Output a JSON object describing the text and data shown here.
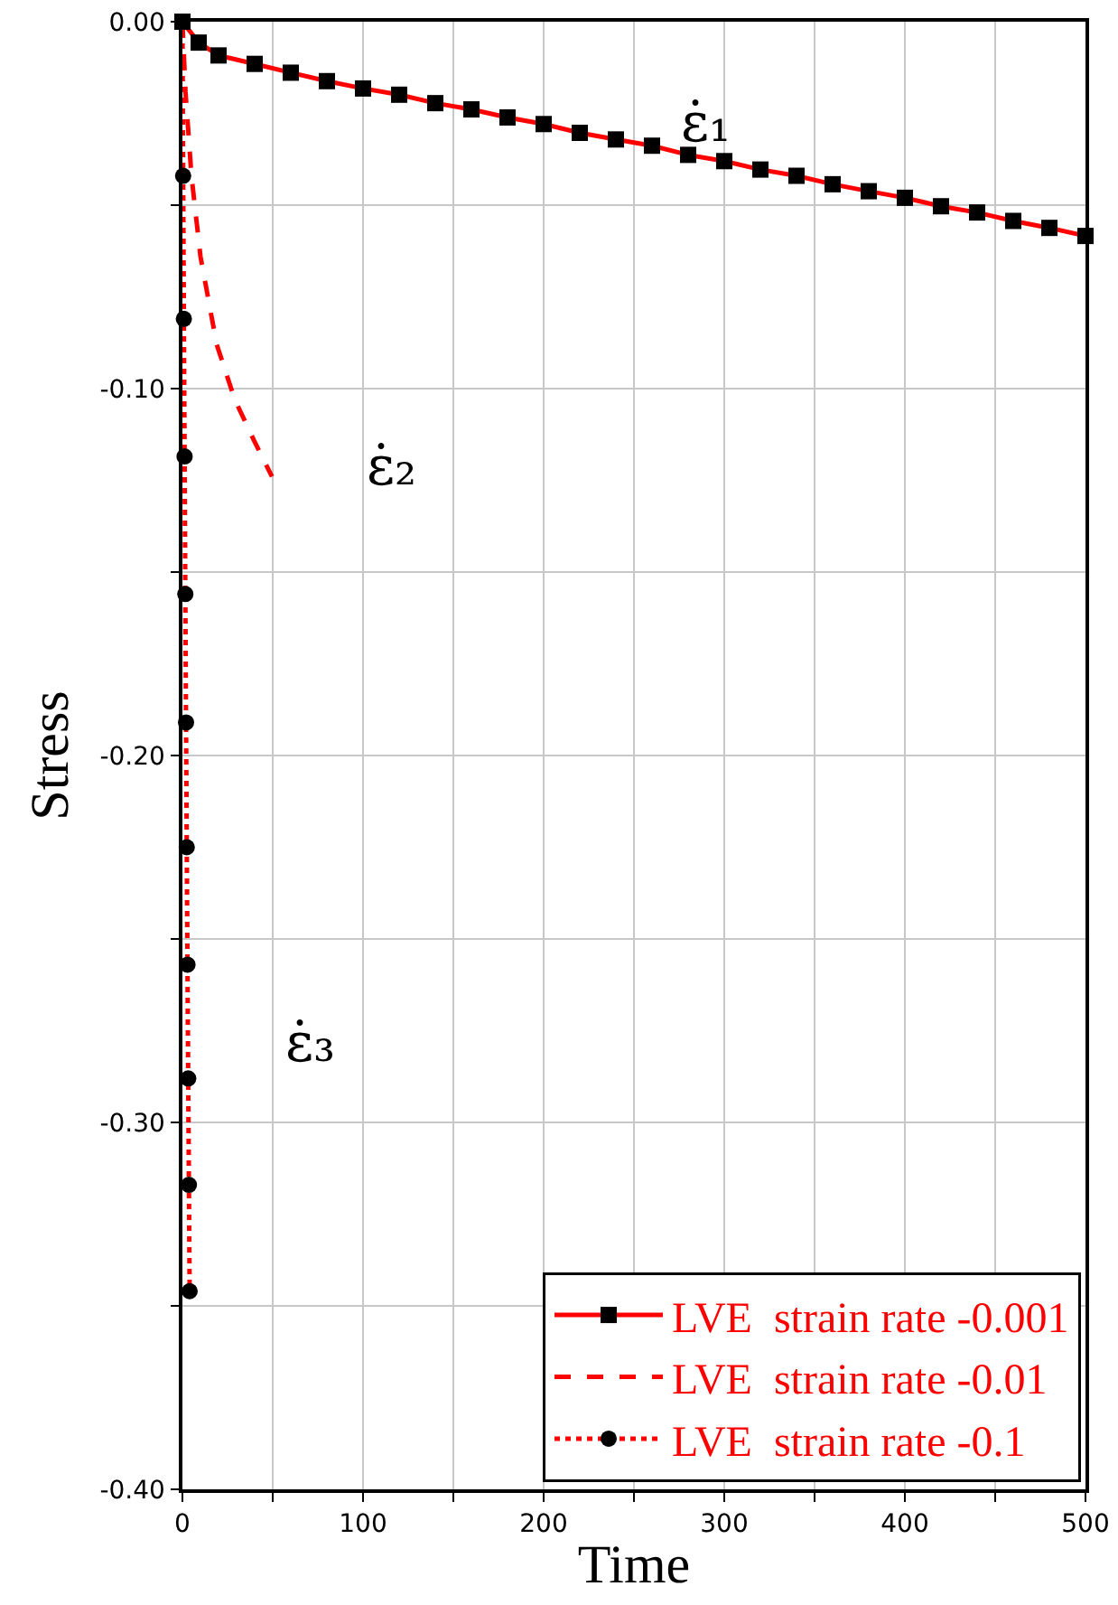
{
  "chart_data": {
    "type": "line",
    "xlabel": "Time",
    "ylabel": "Stress",
    "xlim": [
      0,
      500
    ],
    "xticks": [
      0,
      {
        "value": 50,
        "label": null
      },
      100,
      {
        "value": 150,
        "label": null
      },
      200,
      {
        "value": 250,
        "label": null
      },
      300,
      {
        "value": 350,
        "label": null
      },
      400,
      {
        "value": 450,
        "label": null
      },
      500
    ],
    "ylim": [
      -0.4,
      0
    ],
    "yticks": [
      {
        "value": -0.4,
        "label": "-0.40"
      },
      {
        "value": -0.35,
        "label": null
      },
      {
        "value": -0.3,
        "label": "-0.30"
      },
      {
        "value": -0.25,
        "label": null
      },
      {
        "value": -0.2,
        "label": "-0.20"
      },
      {
        "value": -0.15,
        "label": null
      },
      {
        "value": -0.1,
        "label": "-0.10"
      },
      {
        "value": -0.05,
        "label": null
      },
      {
        "value": 0,
        "label": "0.00"
      }
    ],
    "grid": true,
    "legend": "bottom right",
    "series": [
      {
        "name": "LVE  strain rate -0.001",
        "color": "#ff0000",
        "marker": "square",
        "line_style": "solid",
        "x": [
          0,
          9,
          20,
          40,
          60,
          80,
          100,
          120,
          140,
          160,
          180,
          200,
          220,
          240,
          260,
          280,
          300,
          320,
          340,
          360,
          380,
          400,
          420,
          440,
          460,
          480,
          500
        ],
        "values": [
          0,
          -0.0057,
          -0.0092,
          -0.0115,
          -0.0139,
          -0.0162,
          -0.0182,
          -0.0199,
          -0.0222,
          -0.0239,
          -0.0261,
          -0.0279,
          -0.0303,
          -0.0321,
          -0.0338,
          -0.0363,
          -0.038,
          -0.0403,
          -0.042,
          -0.0443,
          -0.0462,
          -0.048,
          -0.0503,
          -0.052,
          -0.0543,
          -0.0562,
          -0.0584
        ]
      },
      {
        "name": "LVE  strain rate -0.01",
        "color": "#ff0000",
        "marker": "none",
        "line_style": "dashed",
        "x": [
          0,
          1.7,
          5,
          10,
          19,
          29,
          39.5,
          49.6
        ],
        "values": [
          0,
          -0.019,
          -0.042,
          -0.064,
          -0.088,
          -0.103,
          -0.114,
          -0.124
        ]
      },
      {
        "name": "LVE  strain rate -0.1",
        "color": "#ff0000",
        "marker": "circle",
        "line_style": "dotted",
        "x": [
          0,
          0.4,
          0.8,
          1.2,
          1.6,
          2,
          2.4,
          2.8,
          3.2,
          3.6,
          4
        ],
        "values": [
          0,
          -0.042,
          -0.081,
          -0.1185,
          -0.156,
          -0.191,
          -0.225,
          -0.257,
          -0.288,
          -0.317,
          -0.346
        ]
      }
    ],
    "annotations": [
      "ε̇₁",
      "ε̇₂",
      "ε̇₃"
    ]
  }
}
